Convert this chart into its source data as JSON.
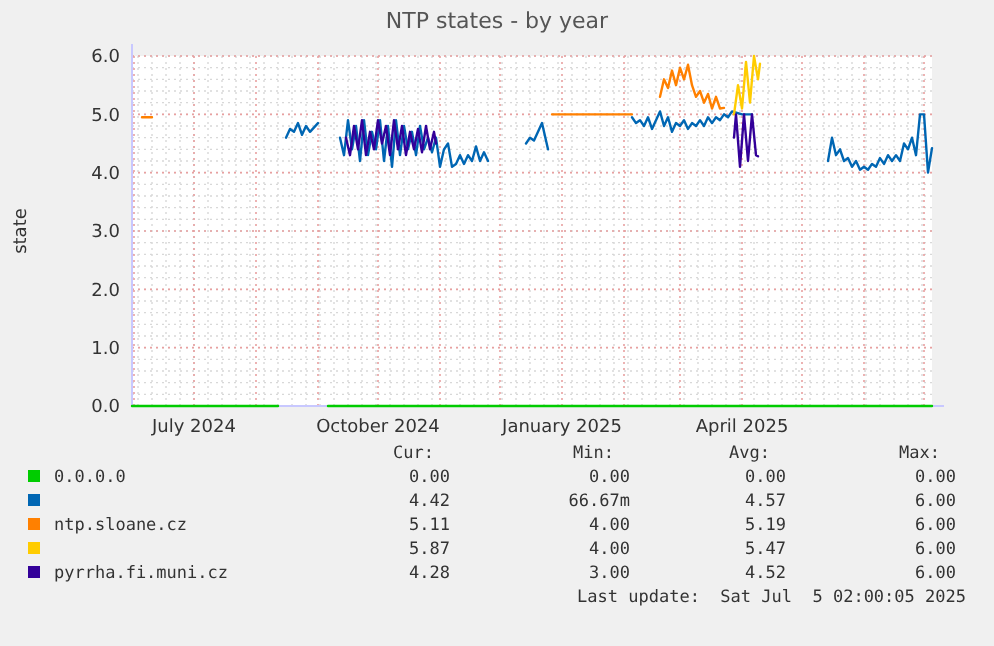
{
  "chart_data": {
    "type": "line",
    "title": "NTP states - by year",
    "ylabel": "state",
    "xlim": [
      "2024-05-31",
      "2025-07-05"
    ],
    "xticks": [
      {
        "value": "2024-06-01",
        "label": null
      },
      {
        "value": "2024-07-01",
        "label": "July 2024"
      },
      {
        "value": "2024-08-01",
        "label": null
      },
      {
        "value": "2024-09-01",
        "label": null
      },
      {
        "value": "2024-10-01",
        "label": "October 2024"
      },
      {
        "value": "2024-11-01",
        "label": null
      },
      {
        "value": "2024-12-01",
        "label": null
      },
      {
        "value": "2025-01-01",
        "label": "January 2025"
      },
      {
        "value": "2025-02-01",
        "label": null
      },
      {
        "value": "2025-03-01",
        "label": null
      },
      {
        "value": "2025-04-01",
        "label": "April 2025"
      },
      {
        "value": "2025-05-01",
        "label": null
      },
      {
        "value": "2025-06-01",
        "label": null
      },
      {
        "value": "2025-07-01",
        "label": null
      }
    ],
    "ylim": [
      0,
      6
    ],
    "yticks": [
      {
        "value": 0,
        "label": "0.0"
      },
      {
        "value": 1,
        "label": "1.0"
      },
      {
        "value": 2,
        "label": "2.0"
      },
      {
        "value": 3,
        "label": "3.0"
      },
      {
        "value": 4,
        "label": "4.0"
      },
      {
        "value": 5,
        "label": "5.0"
      },
      {
        "value": 6,
        "label": "6.0"
      }
    ],
    "grid": true,
    "legend": "bottom",
    "marker": "none",
    "line_style": "solid",
    "series": [
      {
        "name": "0.0.0.0",
        "color": "#00cc00",
        "x": [
          "2024-05-31",
          "2024-08-12",
          "2024-08-20",
          "2024-09-06",
          "2025-07-05"
        ],
        "values": [
          0,
          0,
          null,
          0,
          0
        ]
      },
      {
        "color": "#0066b3",
        "x": [
          "2024-08-16",
          "2024-08-18",
          "2024-08-20",
          "2024-08-22",
          "2024-08-24",
          "2024-08-26",
          "2024-08-28",
          "2024-09-01",
          "2024-09-06",
          "2024-09-12",
          "2024-09-14",
          "2024-09-16",
          "2024-09-18",
          "2024-09-20",
          "2024-09-22",
          "2024-09-24",
          "2024-09-26",
          "2024-09-28",
          "2024-09-30",
          "2024-10-02",
          "2024-10-04",
          "2024-10-06",
          "2024-10-08",
          "2024-10-10",
          "2024-10-12",
          "2024-10-14",
          "2024-10-16",
          "2024-10-18",
          "2024-10-20",
          "2024-10-22",
          "2024-10-24",
          "2024-10-26",
          "2024-10-28",
          "2024-10-30",
          "2024-11-01",
          "2024-11-03",
          "2024-11-05",
          "2024-11-07",
          "2024-11-09",
          "2024-11-11",
          "2024-11-13",
          "2024-11-15",
          "2024-11-17",
          "2024-11-19",
          "2024-11-21",
          "2024-11-23",
          "2024-11-25",
          "2024-12-01",
          "2024-12-14",
          "2024-12-16",
          "2024-12-18",
          "2024-12-20",
          "2024-12-22",
          "2024-12-25",
          "2025-01-15",
          "2025-02-05",
          "2025-02-07",
          "2025-02-09",
          "2025-02-11",
          "2025-02-13",
          "2025-02-15",
          "2025-02-17",
          "2025-02-19",
          "2025-02-21",
          "2025-02-23",
          "2025-02-25",
          "2025-02-27",
          "2025-03-01",
          "2025-03-03",
          "2025-03-05",
          "2025-03-07",
          "2025-03-09",
          "2025-03-11",
          "2025-03-13",
          "2025-03-15",
          "2025-03-17",
          "2025-03-19",
          "2025-03-21",
          "2025-03-23",
          "2025-03-25",
          "2025-03-27",
          "2025-04-01",
          "2025-04-06",
          "2025-04-20",
          "2025-05-14",
          "2025-05-16",
          "2025-05-18",
          "2025-05-20",
          "2025-05-22",
          "2025-05-24",
          "2025-05-26",
          "2025-05-28",
          "2025-05-30",
          "2025-06-01",
          "2025-06-03",
          "2025-06-05",
          "2025-06-07",
          "2025-06-09",
          "2025-06-11",
          "2025-06-13",
          "2025-06-15",
          "2025-06-17",
          "2025-06-19",
          "2025-06-21",
          "2025-06-23",
          "2025-06-25",
          "2025-06-27",
          "2025-06-29",
          "2025-07-01",
          "2025-07-03",
          "2025-07-05"
        ],
        "values": [
          4.6,
          4.75,
          4.7,
          4.85,
          4.65,
          4.8,
          4.7,
          4.85,
          null,
          4.6,
          4.3,
          4.9,
          4.4,
          4.8,
          4.2,
          4.9,
          4.3,
          4.7,
          4.4,
          4.9,
          4.2,
          4.8,
          4.1,
          4.9,
          4.3,
          4.8,
          4.4,
          4.7,
          4.3,
          4.8,
          4.4,
          4.6,
          4.35,
          4.6,
          4.1,
          4.4,
          4.5,
          4.1,
          4.15,
          4.3,
          4.15,
          4.3,
          4.2,
          4.45,
          4.2,
          4.35,
          4.2,
          null,
          4.5,
          4.6,
          4.55,
          4.7,
          4.85,
          4.4,
          null,
          4.95,
          4.85,
          4.9,
          4.8,
          4.95,
          4.75,
          4.9,
          5.05,
          4.8,
          4.95,
          4.7,
          4.85,
          4.8,
          4.9,
          4.75,
          4.85,
          4.8,
          4.9,
          4.8,
          4.95,
          4.85,
          4.95,
          4.9,
          5.0,
          4.95,
          5.05,
          5.0,
          5.0,
          null,
          4.2,
          4.6,
          4.3,
          4.4,
          4.2,
          4.25,
          4.1,
          4.2,
          4.05,
          4.1,
          4.05,
          4.15,
          4.1,
          4.25,
          4.15,
          4.3,
          4.2,
          4.3,
          4.2,
          4.5,
          4.4,
          4.6,
          4.3,
          5.0,
          5.0,
          4.0,
          4.42
        ]
      },
      {
        "name": "ntp.sloane.cz",
        "color": "#ff8000",
        "x": [
          "2024-06-05",
          "2024-06-10",
          "2024-07-01",
          "2024-12-27",
          "2025-02-05",
          "2025-02-12",
          "2025-02-19",
          "2025-02-21",
          "2025-02-23",
          "2025-02-25",
          "2025-02-27",
          "2025-03-01",
          "2025-03-03",
          "2025-03-05",
          "2025-03-07",
          "2025-03-09",
          "2025-03-11",
          "2025-03-13",
          "2025-03-15",
          "2025-03-17",
          "2025-03-19",
          "2025-03-21",
          "2025-03-23"
        ],
        "values": [
          4.95,
          4.95,
          null,
          5.0,
          5.0,
          null,
          5.3,
          5.6,
          5.45,
          5.75,
          5.5,
          5.8,
          5.6,
          5.85,
          5.5,
          5.3,
          5.4,
          5.2,
          5.35,
          5.1,
          5.3,
          5.1,
          5.11
        ]
      },
      {
        "color": "#ffcc00",
        "x": [
          "2025-03-28",
          "2025-03-30",
          "2025-04-01",
          "2025-04-03",
          "2025-04-05",
          "2025-04-07",
          "2025-04-09",
          "2025-04-10"
        ],
        "values": [
          5.0,
          5.5,
          5.1,
          5.9,
          5.2,
          6.0,
          5.6,
          5.87
        ]
      },
      {
        "name": "pyrrha.fi.muni.cz",
        "color": "#330099",
        "x": [
          "2024-09-15",
          "2024-09-17",
          "2024-09-19",
          "2024-09-21",
          "2024-09-23",
          "2024-09-25",
          "2024-09-27",
          "2024-09-29",
          "2024-10-01",
          "2024-10-03",
          "2024-10-05",
          "2024-10-07",
          "2024-10-09",
          "2024-10-11",
          "2024-10-13",
          "2024-10-15",
          "2024-10-17",
          "2024-10-19",
          "2024-10-21",
          "2024-10-23",
          "2024-10-25",
          "2024-10-27",
          "2024-10-29",
          "2024-10-30",
          "2024-11-15",
          "2025-03-28",
          "2025-03-29",
          "2025-03-31",
          "2025-04-02",
          "2025-04-04",
          "2025-04-06",
          "2025-04-08",
          "2025-04-09"
        ],
        "values": [
          4.6,
          4.3,
          4.8,
          4.4,
          4.9,
          4.3,
          4.7,
          4.4,
          4.9,
          4.5,
          4.8,
          4.3,
          4.9,
          4.4,
          4.8,
          4.3,
          4.7,
          4.4,
          4.75,
          4.35,
          4.8,
          4.4,
          4.7,
          4.5,
          null,
          4.6,
          5.0,
          4.1,
          5.0,
          4.2,
          5.0,
          4.3,
          4.28
        ]
      }
    ],
    "annotations": [
      "Cur:",
      "Min:",
      "Avg:",
      "Max:",
      "0.00",
      "0.00",
      "0.00",
      "0.00",
      "4.42",
      "66.67m",
      "4.57",
      "6.00",
      "5.11",
      "4.00",
      "5.19",
      "6.00",
      "5.87",
      "4.00",
      "5.47",
      "6.00",
      "4.28",
      "3.00",
      "4.52",
      "6.00",
      "Last update:  Sat Jul  5 02:00:05 2025"
    ]
  }
}
